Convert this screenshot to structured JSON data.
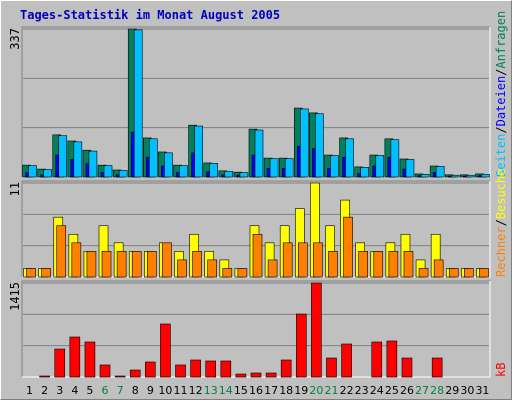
{
  "chart_data": [
    {
      "type": "bar",
      "title": "Tages-Statistik im Monat August 2005",
      "ylim": [
        0,
        337
      ],
      "yticks": [
        337
      ],
      "legend_separator": "/",
      "series": [
        {
          "name": "Anfragen",
          "color": "#00805c",
          "values": [
            27,
            18,
            96,
            82,
            61,
            27,
            16,
            337,
            89,
            57,
            27,
            118,
            32,
            14,
            11,
            109,
            43,
            43,
            157,
            146,
            50,
            89,
            23,
            50,
            87,
            41,
            7,
            25,
            5,
            5,
            7
          ]
        },
        {
          "name": "Dateien",
          "color": "#0000ff",
          "values": [
            10,
            5,
            50,
            40,
            30,
            10,
            5,
            102,
            45,
            25,
            10,
            55,
            12,
            5,
            4,
            50,
            20,
            20,
            70,
            65,
            20,
            45,
            8,
            25,
            45,
            18,
            3,
            10,
            2,
            2,
            3
          ]
        },
        {
          "name": "Seiten",
          "color": "#00c0ff",
          "values": [
            26,
            17,
            94,
            80,
            59,
            26,
            15,
            335,
            87,
            55,
            26,
            116,
            31,
            13,
            10,
            107,
            42,
            42,
            155,
            144,
            49,
            87,
            22,
            49,
            85,
            40,
            6,
            24,
            4,
            4,
            6
          ]
        }
      ]
    },
    {
      "type": "bar",
      "ylim": [
        0,
        11
      ],
      "yticks": [
        11
      ],
      "legend_separator": "/",
      "series": [
        {
          "name": "Besuche",
          "color": "#ffff00",
          "values": [
            1,
            1,
            7,
            5,
            3,
            6,
            4,
            3,
            3,
            4,
            3,
            5,
            3,
            2,
            1,
            6,
            4,
            6,
            8,
            11,
            6,
            9,
            4,
            3,
            4,
            5,
            2,
            5,
            1,
            1,
            1
          ]
        },
        {
          "name": "Rechner",
          "color": "#ff8000",
          "values": [
            1,
            1,
            6,
            4,
            3,
            3,
            3,
            3,
            3,
            4,
            2,
            3,
            2,
            1,
            1,
            5,
            2,
            4,
            4,
            4,
            3,
            7,
            3,
            3,
            3,
            3,
            1,
            2,
            1,
            1,
            1
          ]
        }
      ]
    },
    {
      "type": "bar",
      "ylim": [
        0,
        1415
      ],
      "yticks": [
        1415
      ],
      "categories": [
        "1",
        "2",
        "3",
        "4",
        "5",
        "6",
        "7",
        "8",
        "9",
        "10",
        "11",
        "12",
        "13",
        "14",
        "15",
        "16",
        "17",
        "18",
        "19",
        "20",
        "21",
        "22",
        "23",
        "24",
        "25",
        "26",
        "27",
        "28",
        "29",
        "30",
        "31"
      ],
      "category_colors": [
        "#000",
        "#000",
        "#000",
        "#000",
        "#000",
        "#008040",
        "#008040",
        "#000",
        "#000",
        "#000",
        "#000",
        "#000",
        "#008040",
        "#008040",
        "#000",
        "#000",
        "#000",
        "#000",
        "#000",
        "#008040",
        "#008040",
        "#000",
        "#000",
        "#000",
        "#000",
        "#000",
        "#008040",
        "#008040",
        "#000",
        "#000",
        "#000"
      ],
      "series": [
        {
          "name": "kB",
          "color": "#ff0000",
          "values": [
            0,
            15,
            421,
            602,
            527,
            181,
            15,
            105,
            226,
            798,
            181,
            256,
            241,
            241,
            45,
            60,
            60,
            256,
            948,
            1415,
            286,
            497,
            0,
            527,
            542,
            286,
            0,
            286,
            0,
            0,
            0
          ]
        }
      ]
    }
  ]
}
